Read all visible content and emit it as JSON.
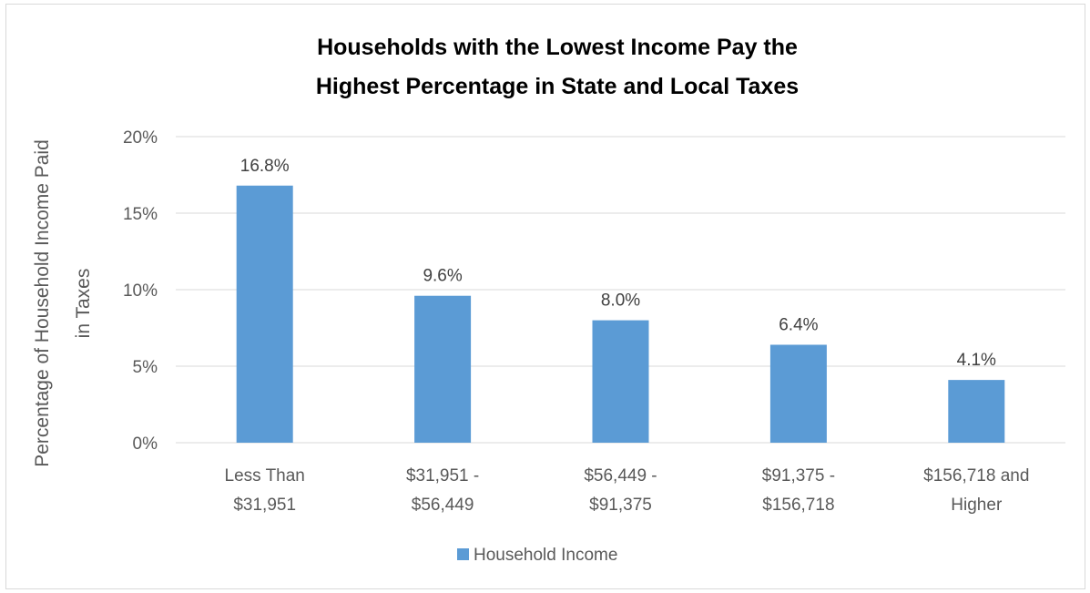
{
  "chart_data": {
    "type": "bar",
    "title": [
      "Households with the Lowest Income Pay the",
      "Highest Percentage in State and Local Taxes"
    ],
    "ylabel": [
      "Percentage of Household Income Paid",
      "in Taxes"
    ],
    "xlabel": "",
    "categories": [
      [
        "Less Than",
        "$31,951"
      ],
      [
        "$31,951 -",
        "$56,449"
      ],
      [
        "$56,449 -",
        "$91,375"
      ],
      [
        "$91,375 -",
        "$156,718"
      ],
      [
        "$156,718 and",
        "Higher"
      ]
    ],
    "series": [
      {
        "name": "Household Income",
        "values": [
          16.8,
          9.6,
          8.0,
          6.4,
          4.1
        ],
        "labels": [
          "16.8%",
          "9.6%",
          "8.0%",
          "6.4%",
          "4.1%"
        ],
        "color": "#5b9bd5"
      }
    ],
    "ylim": [
      0,
      20
    ],
    "yticks": [
      0,
      5,
      10,
      15,
      20
    ],
    "ytick_labels": [
      "0%",
      "5%",
      "10%",
      "15%",
      "20%"
    ],
    "grid": true,
    "legend_position": "bottom",
    "gridline_color": "#d9d9d9"
  }
}
